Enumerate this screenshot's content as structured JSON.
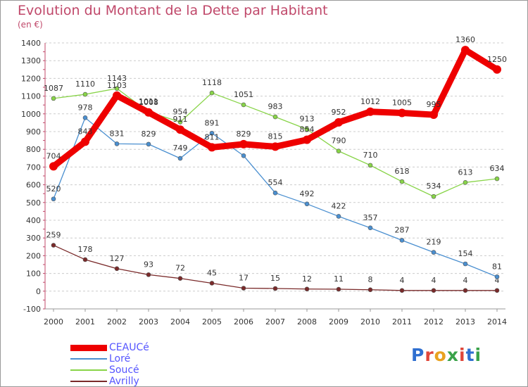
{
  "header": {
    "title": "Evolution du Montant de la Dette par Habitant",
    "subtitle": "(en €)"
  },
  "brand": {
    "text": "Proxiti",
    "letter_colors": [
      "#2f6fd0",
      "#e0463a",
      "#e9a21f",
      "#3aa24a",
      "#e0463a",
      "#2f6fd0",
      "#3aa24a"
    ]
  },
  "chart_data": {
    "type": "line",
    "title": "Evolution du Montant de la Dette par Habitant",
    "subtitle": "(en €)",
    "xlabel": "",
    "ylabel": "",
    "x": [
      "2000",
      "2001",
      "2002",
      "2003",
      "2004",
      "2005",
      "2006",
      "2007",
      "2008",
      "2009",
      "2010",
      "2011",
      "2012",
      "2013",
      "2014"
    ],
    "ylim": [
      -100,
      1400
    ],
    "yticks": [
      -100,
      0,
      100,
      200,
      300,
      400,
      500,
      600,
      700,
      800,
      900,
      1000,
      1100,
      1200,
      1300,
      1400
    ],
    "grid": "horizontal dashed",
    "legend": "bottom-left",
    "series": [
      {
        "name": "CEAUCé",
        "color": "#ee0000",
        "values": [
          704,
          843,
          1103,
          1008,
          911,
          811,
          829,
          815,
          854,
          952,
          1012,
          1005,
          995,
          1360,
          1250
        ]
      },
      {
        "name": "Loré",
        "color": "#4a8fd0",
        "values": [
          520,
          978,
          831,
          829,
          749,
          891,
          764,
          554,
          492,
          422,
          357,
          287,
          219,
          154,
          81
        ]
      },
      {
        "name": "Soucé",
        "color": "#88d448",
        "values": [
          1087,
          1110,
          1143,
          1011,
          954,
          1118,
          1051,
          983,
          913,
          790,
          710,
          618,
          534,
          613,
          634
        ]
      },
      {
        "name": "Avrilly",
        "color": "#7a2a2a",
        "values": [
          259,
          178,
          127,
          93,
          72,
          45,
          17,
          15,
          12,
          11,
          8,
          4,
          4,
          4,
          4
        ]
      }
    ]
  }
}
